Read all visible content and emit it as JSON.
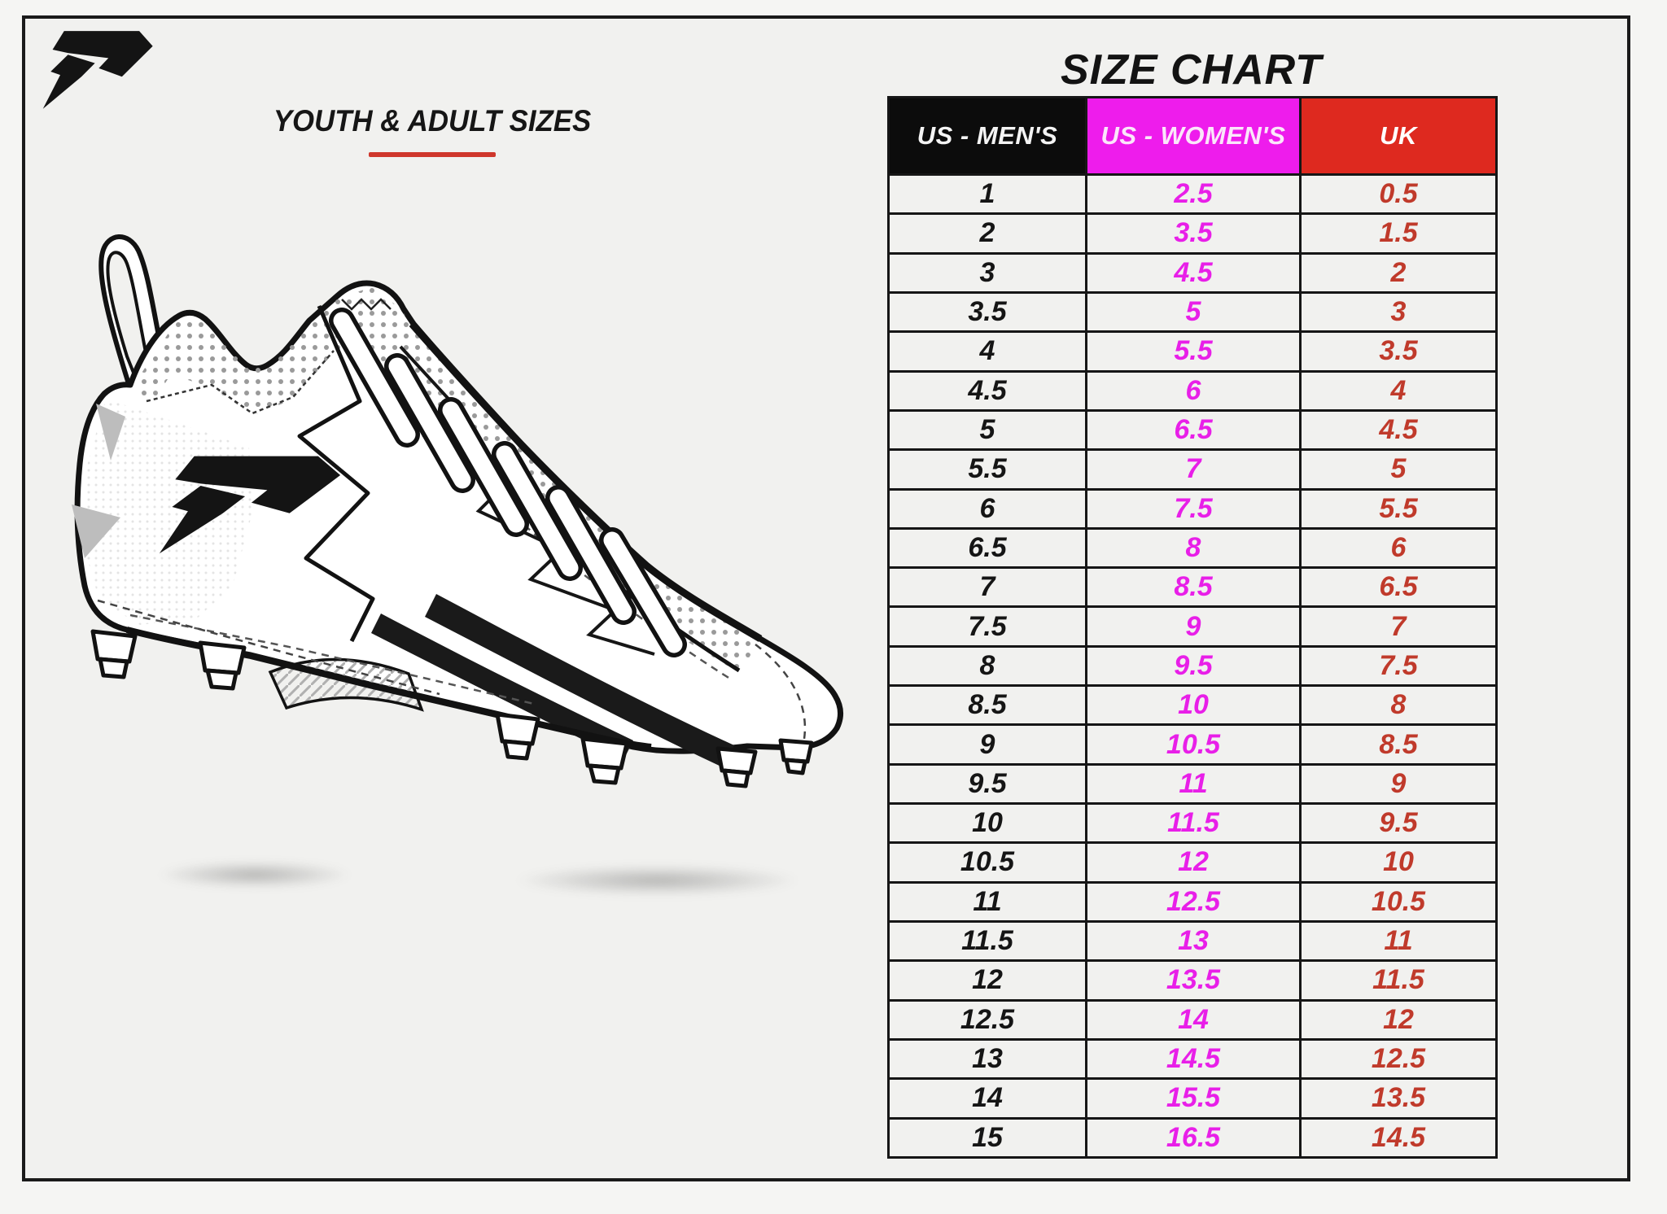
{
  "page": {
    "background": "#f5f5f3",
    "frame_border_color": "#1a1a1a",
    "inner_background": "#f1f1ef"
  },
  "brand": {
    "logo": "phenom-lightning-p-logo",
    "logo_color": "#141414"
  },
  "left_panel": {
    "subtitle": "YOUTH & ADULT SIZES",
    "underline_color": "#cf372c",
    "illustration": "football-cleat-line-drawing",
    "illustration_logo": "phenom-lightning-p-logo"
  },
  "size_chart": {
    "title": "SIZE CHART",
    "columns": [
      {
        "label": "US - MEN'S",
        "bg": "#0c0c0c",
        "fg": "#f4f4f4",
        "value_color": "#151515"
      },
      {
        "label": "US - WOMEN'S",
        "bg": "#ee1cec",
        "fg": "#fbe6fa",
        "value_color": "#e81fe8"
      },
      {
        "label": "UK",
        "bg": "#de291f",
        "fg": "#ffffff",
        "value_color": "#c03a2b"
      }
    ]
  },
  "chart_data": {
    "type": "table",
    "title": "SIZE CHART",
    "columns": [
      "US - MEN'S",
      "US - WOMEN'S",
      "UK"
    ],
    "rows": [
      [
        "1",
        "2.5",
        "0.5"
      ],
      [
        "2",
        "3.5",
        "1.5"
      ],
      [
        "3",
        "4.5",
        "2"
      ],
      [
        "3.5",
        "5",
        "3"
      ],
      [
        "4",
        "5.5",
        "3.5"
      ],
      [
        "4.5",
        "6",
        "4"
      ],
      [
        "5",
        "6.5",
        "4.5"
      ],
      [
        "5.5",
        "7",
        "5"
      ],
      [
        "6",
        "7.5",
        "5.5"
      ],
      [
        "6.5",
        "8",
        "6"
      ],
      [
        "7",
        "8.5",
        "6.5"
      ],
      [
        "7.5",
        "9",
        "7"
      ],
      [
        "8",
        "9.5",
        "7.5"
      ],
      [
        "8.5",
        "10",
        "8"
      ],
      [
        "9",
        "10.5",
        "8.5"
      ],
      [
        "9.5",
        "11",
        "9"
      ],
      [
        "10",
        "11.5",
        "9.5"
      ],
      [
        "10.5",
        "12",
        "10"
      ],
      [
        "11",
        "12.5",
        "10.5"
      ],
      [
        "11.5",
        "13",
        "11"
      ],
      [
        "12",
        "13.5",
        "11.5"
      ],
      [
        "12.5",
        "14",
        "12"
      ],
      [
        "13",
        "14.5",
        "12.5"
      ],
      [
        "14",
        "15.5",
        "13.5"
      ],
      [
        "15",
        "16.5",
        "14.5"
      ]
    ]
  }
}
